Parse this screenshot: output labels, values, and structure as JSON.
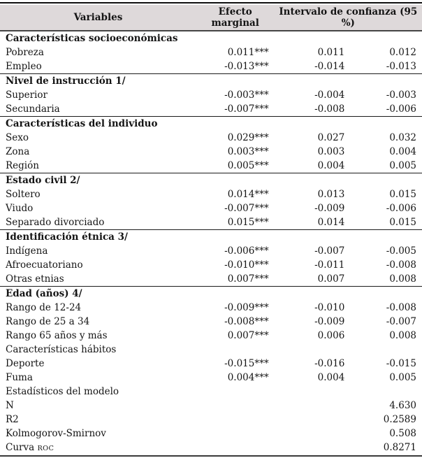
{
  "table": {
    "header": {
      "variables": "Variables",
      "effect": "Efecto marginal",
      "ci": "Intervalo de confianza (95 %)"
    },
    "sections": [
      {
        "title": "Características socioeconómicas",
        "bold": true,
        "divider_above": false,
        "rows": [
          {
            "label": "Pobreza",
            "effect": "0.011***",
            "ci_low": "0.011",
            "ci_high": "0.012"
          },
          {
            "label": "Empleo",
            "effect": "-0.013***",
            "ci_low": "-0.014",
            "ci_high": "-0.013"
          }
        ]
      },
      {
        "title": "Nivel de instrucción 1/",
        "bold": true,
        "divider_above": true,
        "rows": [
          {
            "label": "Superior",
            "effect": "-0.003***",
            "ci_low": "-0.004",
            "ci_high": "-0.003"
          },
          {
            "label": "Secundaria",
            "effect": "-0.007***",
            "ci_low": "-0.008",
            "ci_high": "-0.006"
          }
        ]
      },
      {
        "title": "Características del individuo",
        "bold": true,
        "divider_above": true,
        "rows": [
          {
            "label": "Sexo",
            "effect": "0.029***",
            "ci_low": "0.027",
            "ci_high": "0.032"
          },
          {
            "label": "Zona",
            "effect": "0.003***",
            "ci_low": "0.003",
            "ci_high": "0.004"
          },
          {
            "label": "Región",
            "effect": "0.005***",
            "ci_low": "0.004",
            "ci_high": "0.005"
          }
        ]
      },
      {
        "title": "Estado civil 2/",
        "bold": true,
        "divider_above": true,
        "rows": [
          {
            "label": "Soltero",
            "effect": "0.014***",
            "ci_low": "0.013",
            "ci_high": "0.015"
          },
          {
            "label": "Viudo",
            "effect": "-0.007***",
            "ci_low": "-0.009",
            "ci_high": "-0.006"
          },
          {
            "label": "Separado divorciado",
            "effect": "0.015***",
            "ci_low": "0.014",
            "ci_high": "0.015"
          }
        ]
      },
      {
        "title": "Identificación étnica 3/",
        "bold": true,
        "divider_above": true,
        "rows": [
          {
            "label": "Indígena",
            "effect": "-0.006***",
            "ci_low": "-0.007",
            "ci_high": "-0.005"
          },
          {
            "label": "Afroecuatoriano",
            "effect": "-0.010***",
            "ci_low": "-0.011",
            "ci_high": "-0.008"
          },
          {
            "label": "Otras etnias",
            "effect": "0.007***",
            "ci_low": "0.007",
            "ci_high": "0.008"
          }
        ]
      },
      {
        "title": "Edad (años) 4/",
        "bold": true,
        "divider_above": true,
        "rows": [
          {
            "label": "Rango de 12-24",
            "effect": "-0.009***",
            "ci_low": "-0.010",
            "ci_high": "-0.008"
          },
          {
            "label": "Rango de 25 a 34",
            "effect": "-0.008***",
            "ci_low": "-0.009",
            "ci_high": "-0.007"
          },
          {
            "label": "Rango 65 años y más",
            "effect": "0.007***",
            "ci_low": "0.006",
            "ci_high": "0.008"
          }
        ]
      },
      {
        "title": "Características hábitos",
        "bold": false,
        "divider_above": false,
        "rows": [
          {
            "label": "Deporte",
            "effect": "-0.015***",
            "ci_low": "-0.016",
            "ci_high": "-0.015"
          },
          {
            "label": "Fuma",
            "effect": "0.004***",
            "ci_low": "0.004",
            "ci_high": "0.005"
          }
        ]
      },
      {
        "title": "Estadísticos del modelo",
        "bold": false,
        "divider_above": false,
        "rows": [
          {
            "label": "N",
            "effect": "",
            "ci_low": "",
            "ci_high": "4.630"
          },
          {
            "label": "R2",
            "effect": "",
            "ci_low": "",
            "ci_high": "0.2589"
          },
          {
            "label": "Kolmogorov-Smirnov",
            "effect": "",
            "ci_low": "",
            "ci_high": "0.508"
          },
          {
            "label": "Curva",
            "label_small": "ROC",
            "effect": "",
            "ci_low": "",
            "ci_high": "0.8271"
          }
        ]
      }
    ]
  }
}
